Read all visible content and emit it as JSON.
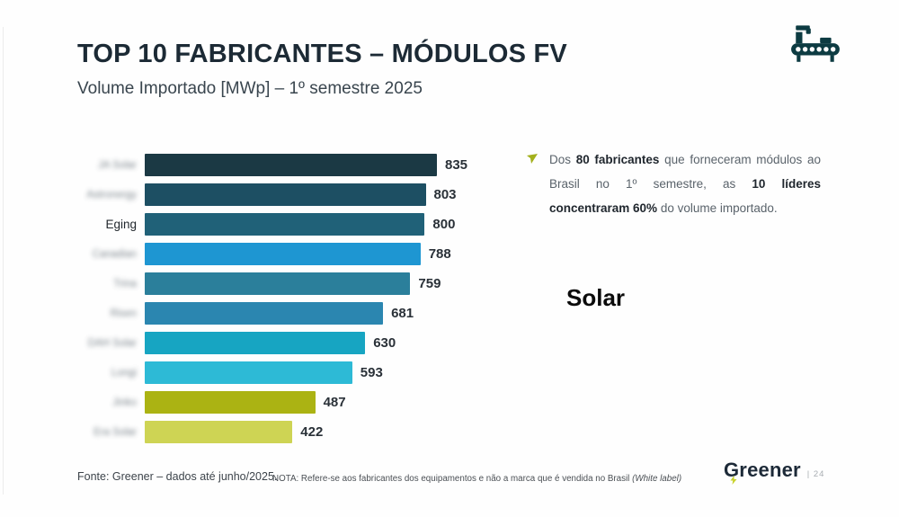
{
  "slide": {
    "title": "TOP 10 FABRICANTES – MÓDULOS FV",
    "subtitle": "Volume Importado [MWp] – 1º semestre 2025",
    "overlay_text": "Solar",
    "footer": {
      "source": "Fonte: Greener – dados até junho/2025.",
      "note": "NOTA: Refere-se aos fabricantes dos equipamentos e não a marca que é vendida no Brasil ",
      "note_italic": "(White label)"
    },
    "logo": {
      "brand": "Greener",
      "page": "| 24"
    },
    "colors": {
      "title_navy": "#1c2a35",
      "icon_teal": "#0d3b42",
      "accent_green": "#a3b01c"
    }
  },
  "annotation": {
    "bullet_icon": "arrow-bullet-icon",
    "segments": [
      {
        "text": "Dos ",
        "bold": false
      },
      {
        "text": "80 fabricantes",
        "bold": true
      },
      {
        "text": " que forneceram módulos ao Brasil no 1º semestre, as ",
        "bold": false
      },
      {
        "text": "10 líderes concentraram 60%",
        "bold": true
      },
      {
        "text": " do volume importado.",
        "bold": false
      }
    ]
  },
  "chart_data": {
    "type": "bar",
    "orientation": "horizontal",
    "title": "TOP 10 FABRICANTES – MÓDULOS FV",
    "subtitle": "Volume Importado [MWp] – 1º semestre 2025",
    "unit": "MWp",
    "xlim": [
      0,
      835
    ],
    "grid": false,
    "legend": "none",
    "value_labels": "outside-end",
    "categories": [
      "JA Solar",
      "Astronergy",
      "Eging",
      "Canadian",
      "Trina",
      "Risen",
      "DAH Solar",
      "Longi",
      "Jinko",
      "Era Solar"
    ],
    "labels_blurred": [
      true,
      true,
      false,
      true,
      true,
      true,
      true,
      true,
      true,
      true
    ],
    "values": [
      835,
      803,
      800,
      788,
      759,
      681,
      630,
      593,
      487,
      422
    ],
    "bar_colors": [
      "#1b3944",
      "#1d4f63",
      "#206178",
      "#1e96d2",
      "#2b7f9b",
      "#2b86b0",
      "#17a5c2",
      "#2dbad6",
      "#abb313",
      "#ced454"
    ]
  }
}
